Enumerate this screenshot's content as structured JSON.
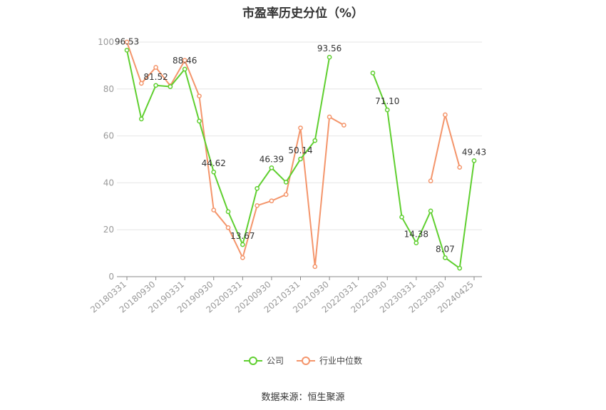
{
  "chart_data": {
    "type": "line",
    "title": "市盈率历史分位（%）",
    "xlabel": "",
    "ylabel": "",
    "ylim": [
      0,
      100
    ],
    "yticks": [
      0,
      20,
      40,
      60,
      80,
      100
    ],
    "x_tick_labels": [
      "20180331",
      "20180930",
      "20190331",
      "20190930",
      "20200331",
      "20200930",
      "20210331",
      "20210930",
      "20220331",
      "20220930",
      "20230331",
      "20230930",
      "20240425"
    ],
    "categories": [
      "20180331",
      "20180630",
      "20180930",
      "20181231",
      "20190331",
      "20190630",
      "20190930",
      "20191231",
      "20200331",
      "20200630",
      "20200930",
      "20201231",
      "20210331",
      "20210630",
      "20210930",
      "20211231",
      "20220331",
      "20220630",
      "20220930",
      "20221231",
      "20230331",
      "20230630",
      "20230930",
      "20231231",
      "20240425"
    ],
    "series": [
      {
        "name": "公司",
        "color": "#5fcf2f",
        "values": [
          96.53,
          67.2,
          81.52,
          81.0,
          88.46,
          66.3,
          44.62,
          27.7,
          13.67,
          37.6,
          46.39,
          40.3,
          50.14,
          58.0,
          93.56,
          null,
          null,
          86.8,
          71.1,
          25.4,
          14.38,
          28.0,
          8.07,
          3.6,
          49.43
        ]
      },
      {
        "name": "行业中位数",
        "color": "#f4956b",
        "values": [
          100,
          82.4,
          89.2,
          81.4,
          92.2,
          77.0,
          28.4,
          20.9,
          8.1,
          30.3,
          32.3,
          35.0,
          63.4,
          4.3,
          68.1,
          64.6,
          null,
          null,
          null,
          null,
          null,
          40.8,
          69.0,
          46.6,
          null
        ]
      }
    ],
    "data_labels": [
      {
        "series": 0,
        "index": 0,
        "text": "96.53"
      },
      {
        "series": 0,
        "index": 2,
        "text": "81.52"
      },
      {
        "series": 0,
        "index": 4,
        "text": "88.46"
      },
      {
        "series": 0,
        "index": 6,
        "text": "44.62"
      },
      {
        "series": 0,
        "index": 8,
        "text": "13.67"
      },
      {
        "series": 0,
        "index": 10,
        "text": "46.39"
      },
      {
        "series": 0,
        "index": 12,
        "text": "50.14"
      },
      {
        "series": 0,
        "index": 14,
        "text": "93.56"
      },
      {
        "series": 0,
        "index": 18,
        "text": "71.10"
      },
      {
        "series": 0,
        "index": 20,
        "text": "14.38"
      },
      {
        "series": 0,
        "index": 22,
        "text": "8.07"
      },
      {
        "series": 0,
        "index": 24,
        "text": "49.43"
      }
    ],
    "grid": true,
    "legend_position": "bottom"
  },
  "legend": {
    "company_label": "公司",
    "industry_label": "行业中位数"
  },
  "source_text": "数据来源：恒生聚源"
}
